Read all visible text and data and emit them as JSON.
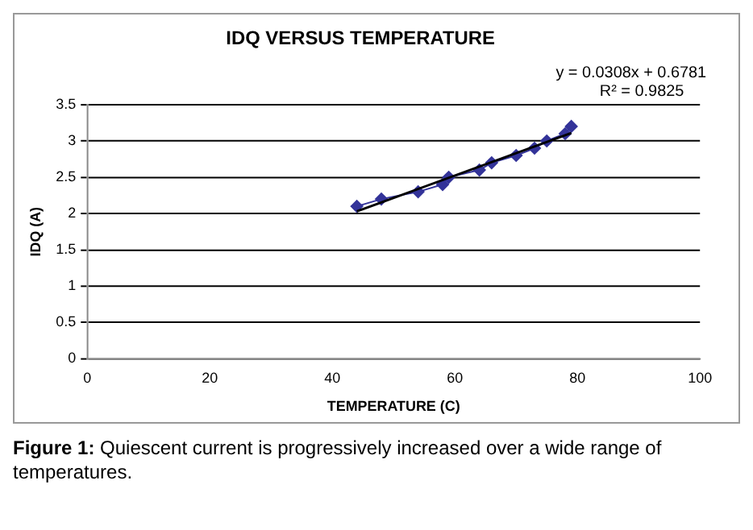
{
  "chart_data": {
    "type": "line",
    "title": "IDQ VERSUS TEMPERATURE",
    "xlabel": "TEMPERATURE (C)",
    "ylabel": "IDQ (A)",
    "series": [
      {
        "color": "#333399",
        "x": [
          44,
          48,
          54,
          58,
          59,
          64,
          66,
          70,
          73,
          75,
          78,
          79
        ],
        "values": [
          2.1,
          2.2,
          2.3,
          2.4,
          2.5,
          2.6,
          2.7,
          2.8,
          2.9,
          3.0,
          3.1,
          3.2
        ],
        "marker": "diamond"
      },
      {
        "color": "#000000",
        "x": [
          44,
          79
        ],
        "values": [
          2.03,
          3.11
        ],
        "marker": "none"
      }
    ],
    "xlim": [
      0,
      100
    ],
    "xticks": [
      0,
      20,
      40,
      60,
      80,
      100
    ],
    "ylim": [
      0,
      3.5
    ],
    "yticks": [
      0,
      0.5,
      1,
      1.5,
      2,
      2.5,
      3,
      3.5
    ],
    "grid": "y",
    "legend": false,
    "annotations": [
      "y = 0.0308x + 0.6781",
      "R² = 0.9825",
      "Figure 1: Quiescent current is progressively increased over a wide range of temperatures."
    ]
  }
}
